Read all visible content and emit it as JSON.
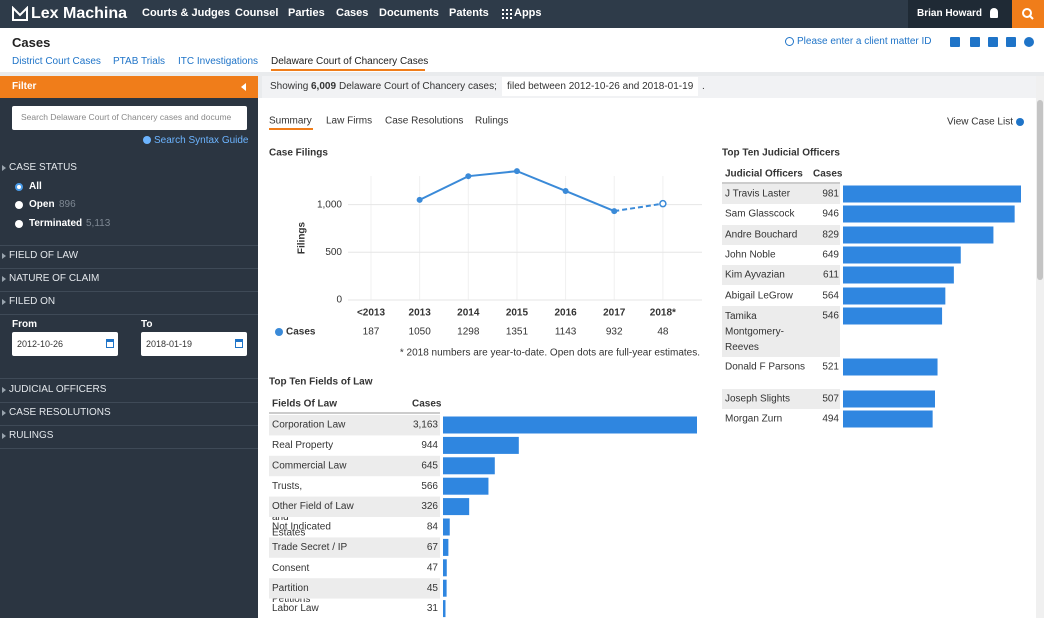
{
  "nav": {
    "brand": "Lex Machina",
    "items": [
      "Courts & Judges",
      "Counsel",
      "Parties",
      "Cases",
      "Documents",
      "Patents",
      "Apps"
    ],
    "user": "Brian Howard"
  },
  "header": {
    "title": "Cases",
    "tabs": [
      "District Court Cases",
      "PTAB Trials",
      "ITC Investigations",
      "Delaware Court of Chancery Cases"
    ],
    "client_matter": "Please enter a client matter ID"
  },
  "filter": {
    "title": "Filter",
    "search_placeholder": "Search Delaware Court of Chancery cases and docume",
    "syntax_guide": "Search Syntax Guide",
    "case_status": {
      "label": "CASE STATUS",
      "options": [
        {
          "label": "All"
        },
        {
          "label": "Open",
          "count": "896"
        },
        {
          "label": "Terminated",
          "count": "5,113"
        }
      ]
    },
    "sections_top": [
      "FIELD OF LAW",
      "NATURE OF CLAIM",
      "FILED ON"
    ],
    "filed_on": {
      "from_label": "From",
      "from": "2012-10-26",
      "to_label": "To",
      "to": "2018-01-19"
    },
    "sections_bottom": [
      "JUDICIAL OFFICERS",
      "CASE RESOLUTIONS",
      "RULINGS"
    ]
  },
  "summary": {
    "prefix": "Showing",
    "count": "6,009",
    "court": "Delaware Court of Chancery cases;",
    "filter": "filed between 2012-10-26 and 2018-01-19",
    "end": "."
  },
  "subtabs": [
    "Summary",
    "Law Firms",
    "Case Resolutions",
    "Rulings"
  ],
  "view_case_list": "View Case List",
  "chart_data": [
    {
      "type": "line",
      "title": "Case Filings",
      "ylabel": "Filings",
      "categories": [
        "<2013",
        "2013",
        "2014",
        "2015",
        "2016",
        "2017",
        "2018*"
      ],
      "series": [
        {
          "name": "Cases",
          "color": "#3a8ad8",
          "values": [
            187,
            1050,
            1298,
            1351,
            1143,
            932,
            48
          ]
        }
      ],
      "full_year_estimates": [
        null,
        null,
        null,
        null,
        null,
        null,
        1010
      ],
      "ylim": [
        0,
        1300
      ],
      "yticks": [
        0,
        500,
        {
          "value": 1000,
          "label": "1,000"
        }
      ],
      "grid": true,
      "note": "* 2018 numbers are year-to-date. Open dots are full-year estimates."
    },
    {
      "type": "bar",
      "orientation": "horizontal",
      "title": "Top Ten Fields of Law",
      "headers": [
        "Fields Of Law",
        "Cases"
      ],
      "categories": [
        "Corporation Law",
        "Real Property",
        "Commercial Law",
        "Trusts, Wills and Estates",
        "Other Field of Law",
        "Not Indicated",
        "Trade Secret / IP",
        "Consent Trust Petitions",
        "Partition",
        "Labor Law"
      ],
      "values": [
        3163,
        944,
        645,
        566,
        326,
        84,
        67,
        47,
        45,
        31
      ],
      "value_labels": [
        "3,163",
        "944",
        "645",
        "566",
        "326",
        "84",
        "67",
        "47",
        "45",
        "31"
      ],
      "color": "#2f86e0"
    },
    {
      "type": "bar",
      "orientation": "horizontal",
      "title": "Top Ten Judicial Officers",
      "headers": [
        "Judicial Officers",
        "Cases"
      ],
      "categories": [
        "J Travis Laster",
        "Sam Glasscock",
        "Andre Bouchard",
        "John Noble",
        "Kim Ayvazian",
        "Abigail LeGrow",
        "Tamika Montgomery-Reeves",
        "Donald F Parsons",
        "Joseph Slights",
        "Morgan Zurn"
      ],
      "values": [
        981,
        946,
        829,
        649,
        611,
        564,
        546,
        521,
        507,
        494
      ],
      "color": "#2f86e0"
    }
  ]
}
